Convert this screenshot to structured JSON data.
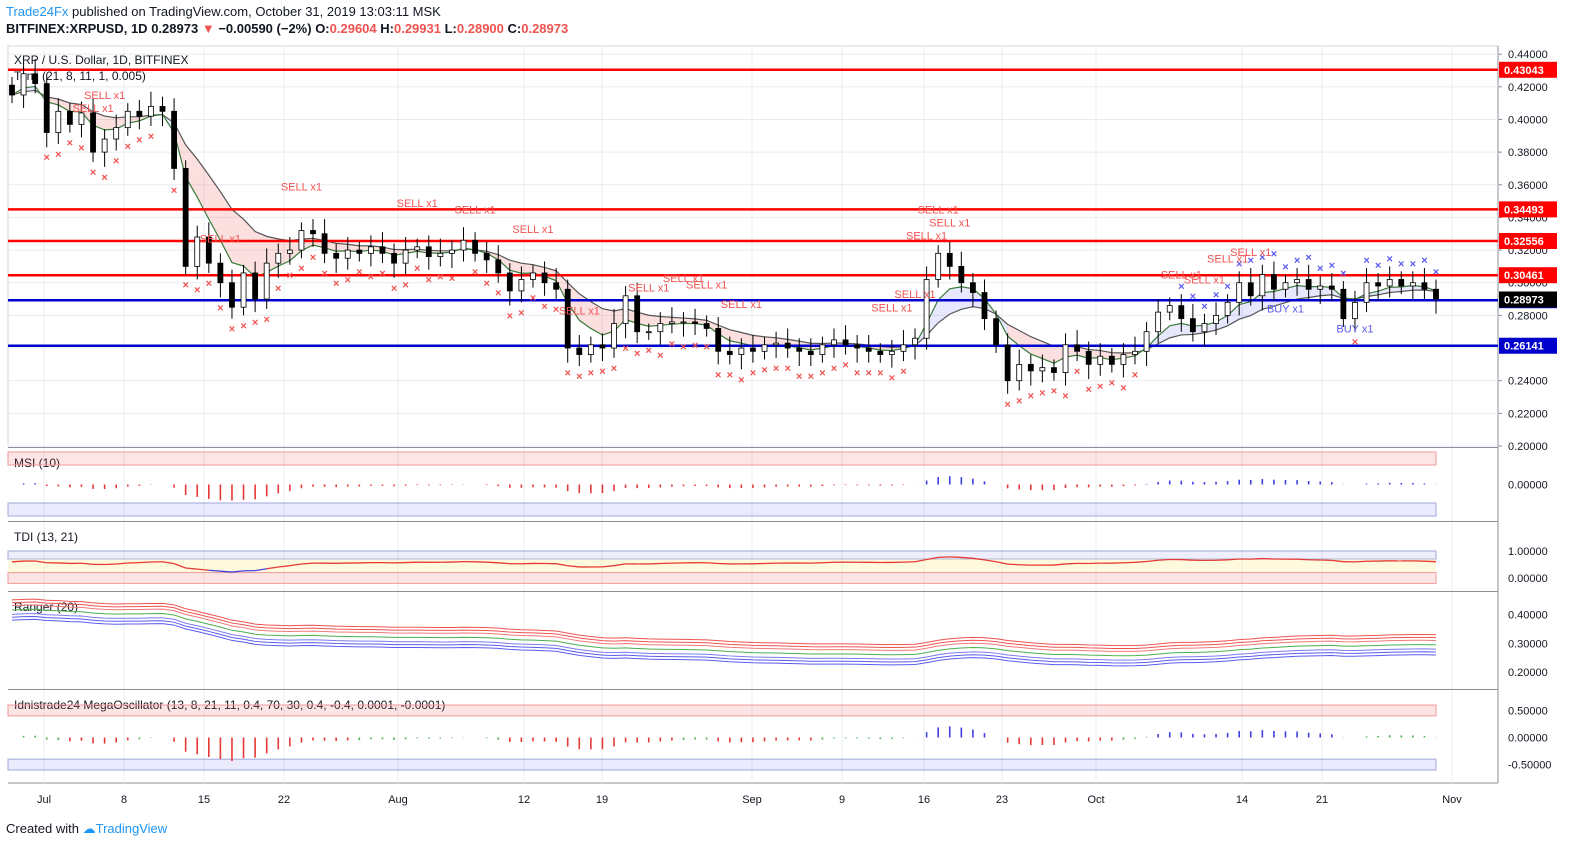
{
  "header": {
    "author": "Trade24Fx",
    "published": "published on TradingView.com, October 31, 2019 13:03:11 MSK",
    "symbol": "BITFINEX:XRPUSD, 1D",
    "last": "0.28973",
    "change": "−0.00590 (−2%)",
    "open_label": "O:",
    "open": "0.29604",
    "high_label": "H:",
    "high": "0.29931",
    "low_label": "L:",
    "low": "0.28900",
    "close_label": "C:",
    "close": "0.28973"
  },
  "footer": {
    "created_with": "Created with",
    "brand": "TradingView"
  },
  "colors": {
    "red_level": "#ff0000",
    "blue_level": "#0000cc",
    "bull": "#ffffff",
    "bear": "#000000",
    "sell": "#ef5350",
    "buy": "#5b5bf0",
    "grid": "#e8ecf0"
  },
  "chart_data": {
    "type": "candlestick",
    "title": "XRP / U.S. Dollar, 1D, BITFINEX",
    "indicator_label": "Tenji (21, 8, 11, 1, 0.005)",
    "ylim": [
      0.2,
      0.445
    ],
    "y_ticks": [
      "0.44000",
      "0.42000",
      "0.40000",
      "0.38000",
      "0.36000",
      "0.34000",
      "0.32000",
      "0.30000",
      "0.28000",
      "0.26000",
      "0.24000",
      "0.22000",
      "0.20000"
    ],
    "x_ticks": [
      "Jul",
      "8",
      "15",
      "22",
      "Aug",
      "12",
      "19",
      "Sep",
      "9",
      "16",
      "23",
      "Oct",
      "14",
      "21",
      "Nov"
    ],
    "levels": [
      {
        "value": 0.43043,
        "label": "0.43043",
        "color": "#ff0000"
      },
      {
        "value": 0.34493,
        "label": "0.34493",
        "color": "#ff0000"
      },
      {
        "value": 0.32556,
        "label": "0.32556",
        "color": "#ff0000"
      },
      {
        "value": 0.30461,
        "label": "0.30461",
        "color": "#ff0000"
      },
      {
        "value": 0.2893,
        "label": "0.28930",
        "color": "#0000cc"
      },
      {
        "value": 0.26141,
        "label": "0.26141",
        "color": "#0000cc"
      }
    ],
    "last_price": {
      "value": 0.28973,
      "label": "0.28973"
    },
    "closes": [
      0.415,
      0.428,
      0.422,
      0.392,
      0.405,
      0.397,
      0.404,
      0.38,
      0.388,
      0.395,
      0.405,
      0.402,
      0.408,
      0.405,
      0.37,
      0.31,
      0.328,
      0.312,
      0.3,
      0.285,
      0.306,
      0.29,
      0.312,
      0.318,
      0.32,
      0.332,
      0.33,
      0.318,
      0.315,
      0.32,
      0.318,
      0.322,
      0.318,
      0.312,
      0.32,
      0.322,
      0.316,
      0.318,
      0.32,
      0.326,
      0.318,
      0.314,
      0.306,
      0.295,
      0.302,
      0.306,
      0.3,
      0.296,
      0.26,
      0.256,
      0.262,
      0.26,
      0.275,
      0.292,
      0.27,
      0.27,
      0.275,
      0.276,
      0.276,
      0.275,
      0.272,
      0.258,
      0.256,
      0.26,
      0.258,
      0.262,
      0.263,
      0.26,
      0.258,
      0.256,
      0.262,
      0.265,
      0.262,
      0.26,
      0.258,
      0.256,
      0.258,
      0.262,
      0.266,
      0.302,
      0.318,
      0.31,
      0.3,
      0.294,
      0.278,
      0.262,
      0.24,
      0.25,
      0.246,
      0.248,
      0.245,
      0.262,
      0.258,
      0.25,
      0.255,
      0.25,
      0.256,
      0.258,
      0.27,
      0.282,
      0.286,
      0.278,
      0.27,
      0.275,
      0.28,
      0.288,
      0.3,
      0.292,
      0.305,
      0.296,
      0.3,
      0.302,
      0.296,
      0.298,
      0.296,
      0.278,
      0.288,
      0.3,
      0.298,
      0.302,
      0.298,
      0.3,
      0.296,
      0.29
    ],
    "sell_signals": [
      {
        "label": "SELL x1",
        "i": 13
      },
      {
        "label": "SELL x1",
        "i": 15
      },
      {
        "label": "SELL x1",
        "i": 32
      },
      {
        "label": "SELL x1",
        "i": 44
      },
      {
        "label": "SELL x1",
        "i": 62
      },
      {
        "label": "SELL x1",
        "i": 71
      },
      {
        "label": "SELL x1",
        "i": 80
      },
      {
        "label": "SELL x1",
        "i": 87
      },
      {
        "label": "SELL x1",
        "i": 97
      },
      {
        "label": "SELL x1",
        "i": 103
      },
      {
        "label": "SELL x1",
        "i": 107
      },
      {
        "label": "SELL x1",
        "i": 112
      },
      {
        "label": "SELL x1",
        "i": 135
      },
      {
        "label": "SELL x1",
        "i": 138
      },
      {
        "label": "SELL x1",
        "i": 141
      },
      {
        "label": "SELL x1",
        "i": 142
      },
      {
        "label": "SELL x1",
        "i": 143
      },
      {
        "label": "SELL x1",
        "i": 179
      },
      {
        "label": "SELL x1",
        "i": 182
      },
      {
        "label": "SELL x1",
        "i": 186
      },
      {
        "label": "SELL x1",
        "i": 189
      }
    ],
    "buy_signals": [
      {
        "label": "BUY x1",
        "i": 196
      },
      {
        "label": "BUY x1",
        "i": 205
      }
    ],
    "panels": [
      {
        "name": "MSI (10)",
        "ticks": [
          "0.00000"
        ]
      },
      {
        "name": "TDI (13, 21)",
        "ticks": [
          "1.00000",
          "0.00000"
        ]
      },
      {
        "name": "Ranger (20)",
        "ticks": [
          "0.40000",
          "0.30000",
          "0.20000"
        ]
      },
      {
        "name": "Idnistrade24 MegaOscillator (13, 8, 21, 11, 0.4, 70, 30, 0.4, -0.4, 0.0001, -0.0001)",
        "ticks": [
          "0.50000",
          "0.00000",
          "-0.50000"
        ]
      }
    ]
  }
}
